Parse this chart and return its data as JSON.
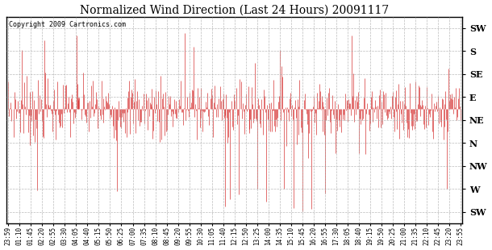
{
  "title": "Normalized Wind Direction (Last 24 Hours) 20091117",
  "copyright_text": "Copyright 2009 Cartronics.com",
  "line_color": "#cc0000",
  "background_color": "white",
  "grid_color": "#aaaaaa",
  "y_tick_labels": [
    "SW",
    "W",
    "NW",
    "N",
    "NE",
    "E",
    "SE",
    "S",
    "SW"
  ],
  "y_tick_values": [
    0,
    1,
    2,
    3,
    4,
    5,
    6,
    7,
    8
  ],
  "ylim": [
    -0.5,
    8.5
  ],
  "x_labels": [
    "23:59",
    "01:10",
    "01:45",
    "02:20",
    "02:55",
    "03:30",
    "04:05",
    "04:40",
    "05:15",
    "05:50",
    "06:25",
    "07:00",
    "07:35",
    "08:10",
    "08:45",
    "09:20",
    "09:55",
    "10:30",
    "11:05",
    "11:40",
    "12:15",
    "12:50",
    "13:25",
    "14:00",
    "14:35",
    "15:10",
    "15:45",
    "16:20",
    "16:55",
    "17:30",
    "18:05",
    "18:40",
    "19:15",
    "19:50",
    "20:25",
    "21:00",
    "21:35",
    "22:10",
    "22:45",
    "23:20",
    "23:55"
  ],
  "n_points": 580,
  "base_mean": 4.5,
  "base_std": 0.7,
  "seed": 7
}
